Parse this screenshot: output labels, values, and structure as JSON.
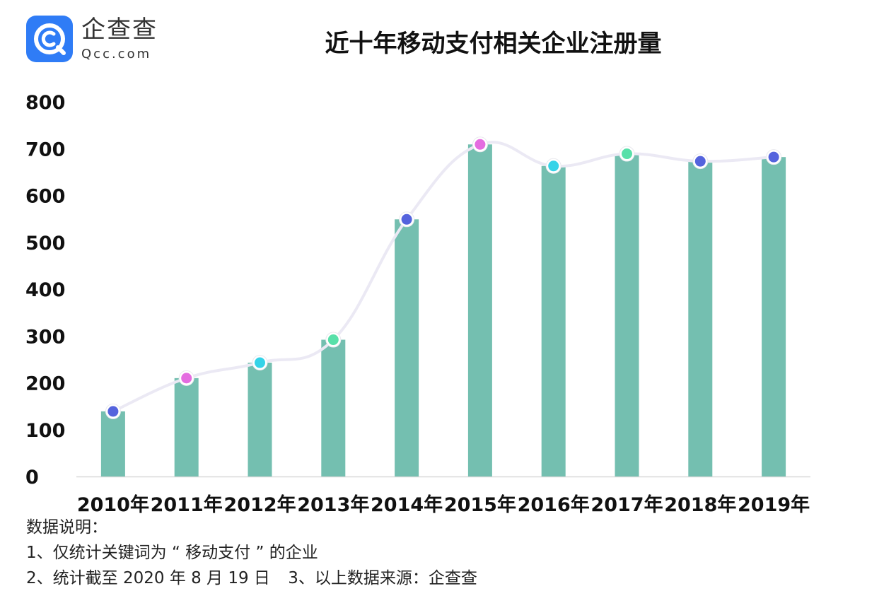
{
  "brand": {
    "name": "企查查",
    "domain": "Qcc.com"
  },
  "colors": {
    "bar": "#74bfb0",
    "line": "#ebe9f4",
    "axis": "#d8d8d8",
    "brand": "#2f7cf6",
    "marker_colors": [
      "#5463dd",
      "#e46ce0",
      "#35d3e8",
      "#58e0a9",
      "#5463dd",
      "#e46ce0",
      "#35d3e8",
      "#58e0a9",
      "#5463dd",
      "#5463dd"
    ]
  },
  "chart_data": {
    "type": "bar",
    "title": "近十年移动支付相关企业注册量",
    "categories": [
      "2010年",
      "2011年",
      "2012年",
      "2013年",
      "2014年",
      "2015年",
      "2016年",
      "2017年",
      "2018年",
      "2019年"
    ],
    "values": [
      139,
      210,
      243,
      292,
      549,
      709,
      663,
      689,
      673,
      682
    ],
    "line_overlay": true,
    "xlabel": "",
    "ylabel": "",
    "ylim": [
      0,
      800
    ],
    "yticks": [
      0,
      100,
      200,
      300,
      400,
      500,
      600,
      700,
      800
    ],
    "grid": false,
    "legend": "none"
  },
  "notes": {
    "heading": "数据说明：",
    "line1": "1、仅统计关键词为 “ 移动支付 ” 的企业",
    "line2a": "2、统计截至 2020 年 8 月 19 日",
    "line2b": "3、以上数据来源：企查查"
  }
}
